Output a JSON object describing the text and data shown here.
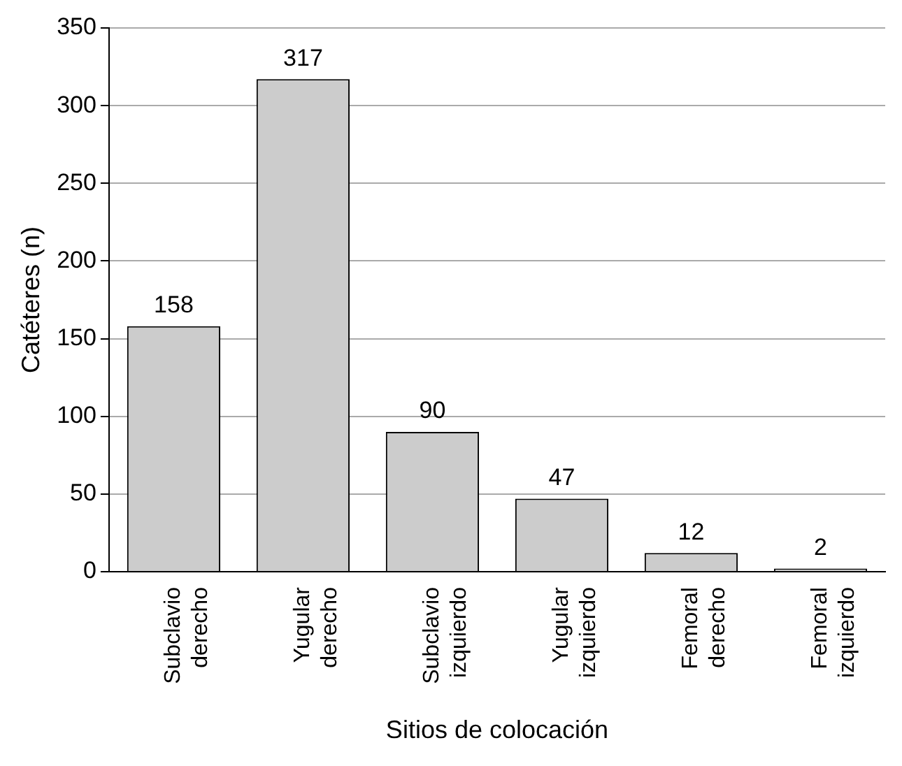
{
  "chart_data": {
    "type": "bar",
    "xlabel": "Sitios de colocación",
    "ylabel": "Catéteres (n)",
    "categories": [
      "Subclavio derecho",
      "Yugular derecho",
      "Subclavio izquierdo",
      "Yugular izquierdo",
      "Femoral derecho",
      "Femoral izquierdo"
    ],
    "values": [
      158,
      317,
      90,
      47,
      12,
      2
    ],
    "color": "#cccccc",
    "ylim": [
      0,
      350
    ],
    "yticks": [
      0,
      50,
      100,
      150,
      200,
      250,
      300,
      350
    ],
    "grid": "y",
    "legend": false,
    "data_labels": true
  }
}
